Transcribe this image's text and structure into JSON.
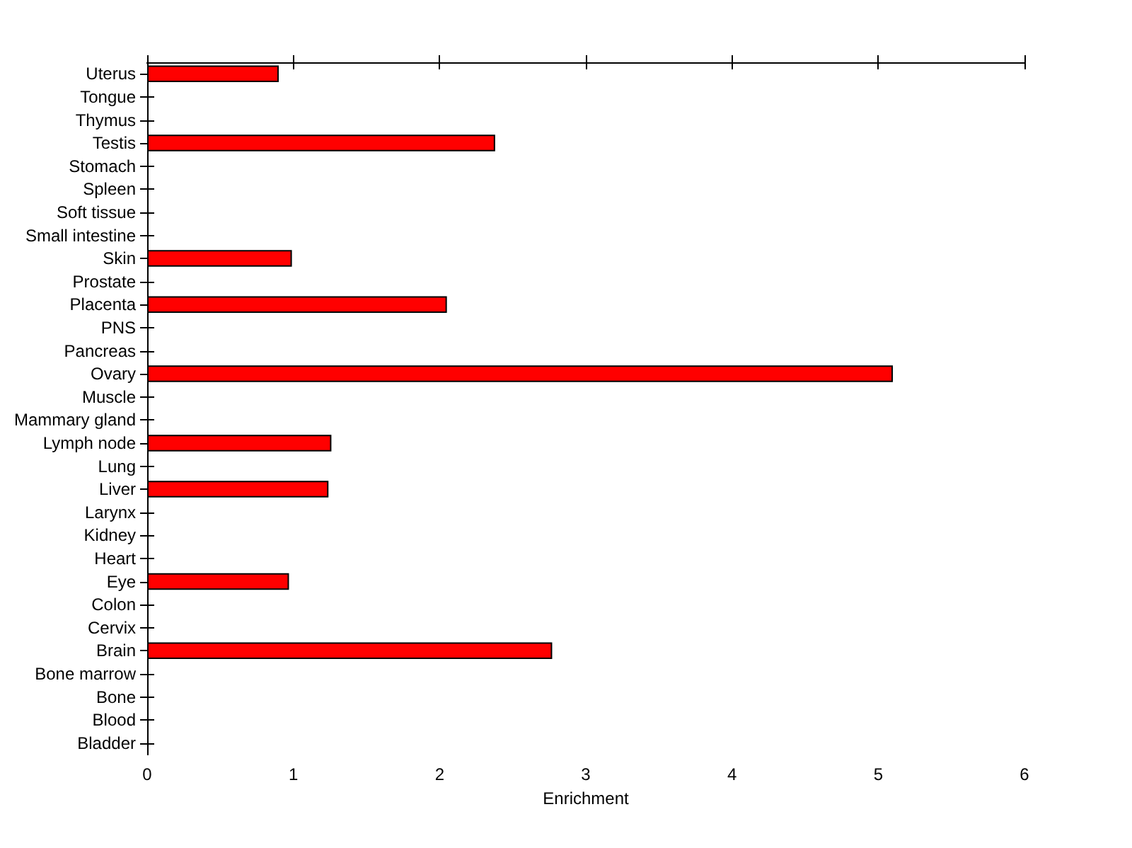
{
  "chart_data": {
    "type": "bar",
    "orientation": "horizontal",
    "xlabel": "Enrichment",
    "categories": [
      "Uterus",
      "Tongue",
      "Thymus",
      "Testis",
      "Stomach",
      "Spleen",
      "Soft tissue",
      "Small intestine",
      "Skin",
      "Prostate",
      "Placenta",
      "PNS",
      "Pancreas",
      "Ovary",
      "Muscle",
      "Mammary gland",
      "Lymph node",
      "Lung",
      "Liver",
      "Larynx",
      "Kidney",
      "Heart",
      "Eye",
      "Colon",
      "Cervix",
      "Brain",
      "Bone marrow",
      "Bone",
      "Blood",
      "Bladder"
    ],
    "values": [
      0.9,
      0,
      0,
      2.38,
      0,
      0,
      0,
      0,
      0.99,
      0,
      2.05,
      0,
      0,
      5.1,
      0,
      0,
      1.26,
      0,
      1.24,
      0,
      0,
      0,
      0.97,
      0,
      0,
      2.77,
      0,
      0,
      0,
      0
    ],
    "color": "#ff0000",
    "xlim": [
      0,
      6
    ],
    "xticks": [
      0,
      1,
      2,
      3,
      4,
      5,
      6
    ],
    "grid": false
  }
}
